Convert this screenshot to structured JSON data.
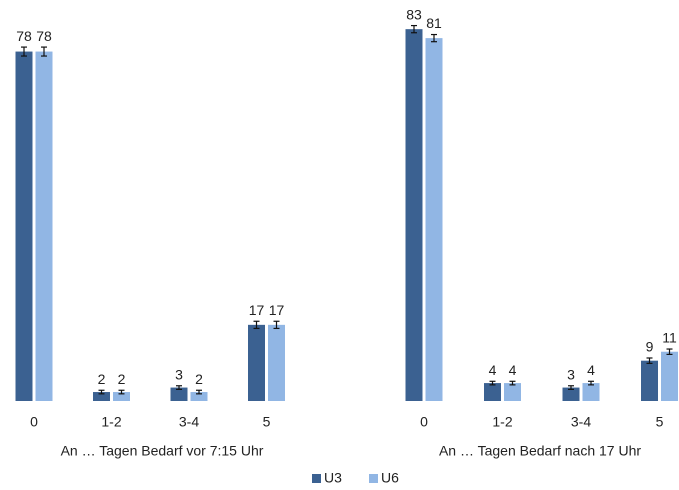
{
  "chart_data": [
    {
      "type": "bar",
      "xlabel": "An … Tagen Bedarf vor 7:15 Uhr",
      "categories": [
        "0",
        "1-2",
        "3-4",
        "5"
      ],
      "series": [
        {
          "name": "U3",
          "color": "#3b6191",
          "values": [
            78,
            2,
            3,
            17
          ],
          "errors": [
            1,
            0.4,
            0.4,
            0.8
          ]
        },
        {
          "name": "U6",
          "color": "#91b6e4",
          "values": [
            78,
            2,
            2,
            17
          ],
          "errors": [
            1,
            0.4,
            0.4,
            0.8
          ]
        }
      ]
    },
    {
      "type": "bar",
      "xlabel": "An … Tagen Bedarf nach 17 Uhr",
      "categories": [
        "0",
        "1-2",
        "3-4",
        "5"
      ],
      "series": [
        {
          "color": "#3b6191",
          "values": [
            83,
            4,
            3,
            9
          ],
          "errors": [
            0.8,
            0.4,
            0.4,
            0.6
          ]
        },
        {
          "color": "#91b6e4",
          "values": [
            81,
            4,
            4,
            11
          ],
          "errors": [
            0.8,
            0.4,
            0.4,
            0.6
          ]
        }
      ]
    }
  ]
}
